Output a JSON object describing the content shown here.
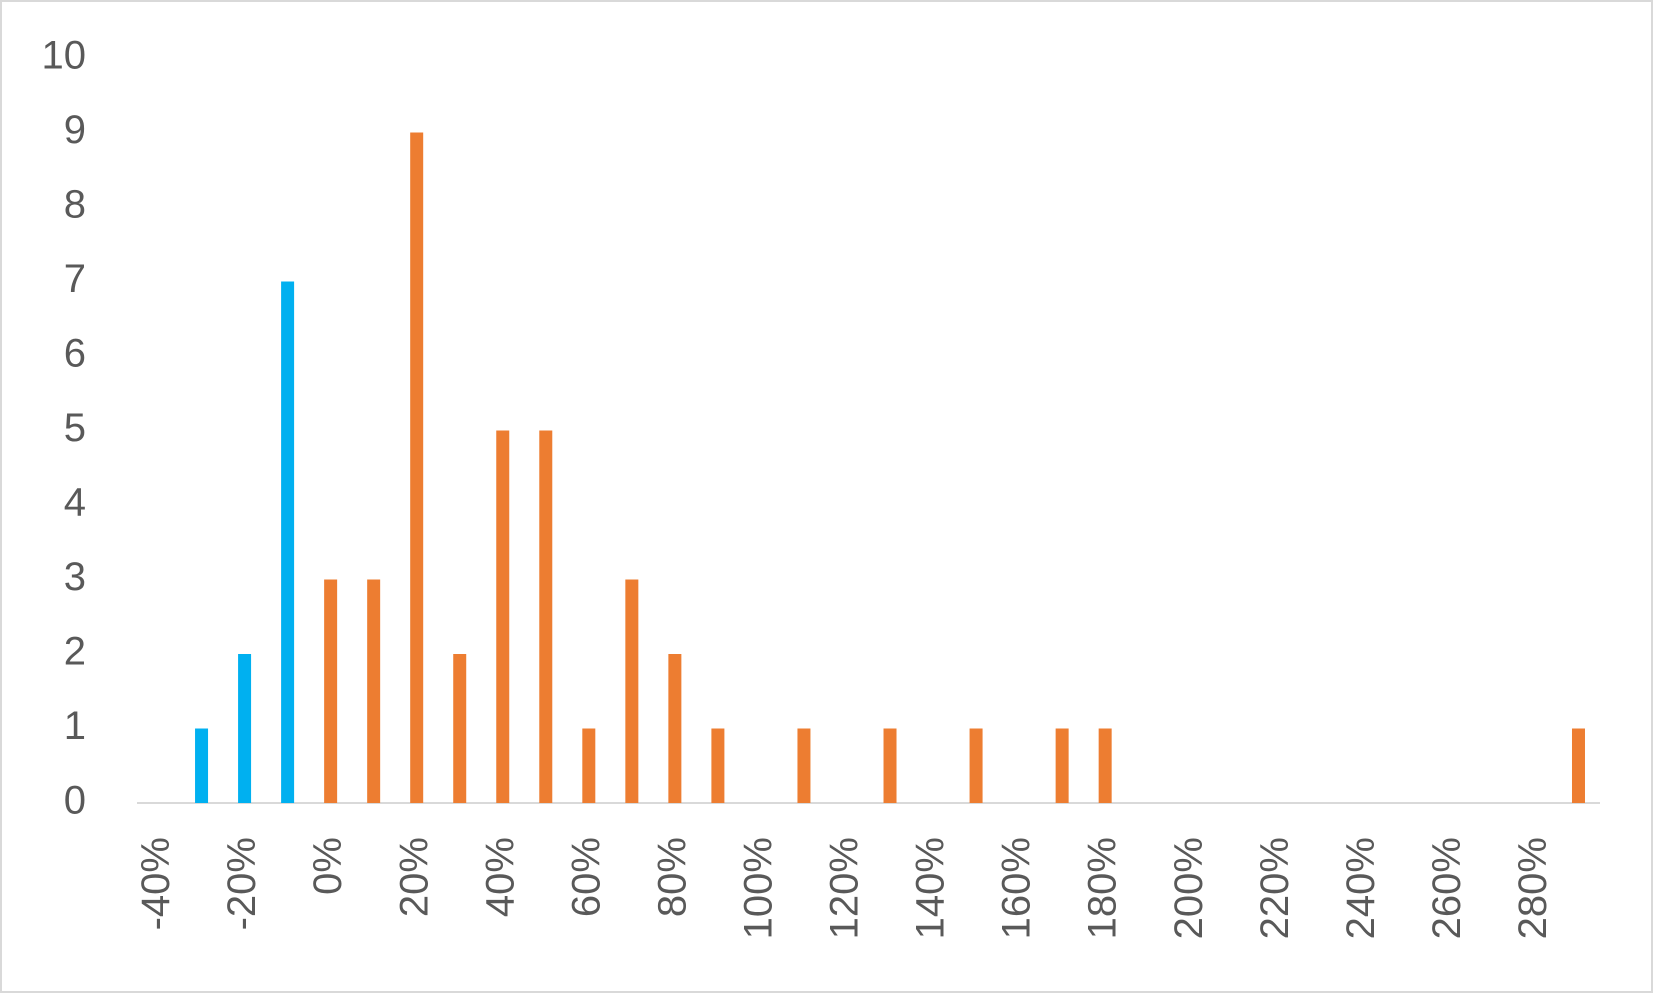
{
  "chart_data": {
    "type": "bar",
    "categories": [
      "-40%",
      null,
      "-20%",
      null,
      "0%",
      null,
      "20%",
      null,
      "40%",
      null,
      "60%",
      null,
      "80%",
      null,
      "100%",
      null,
      "120%",
      null,
      "140%",
      null,
      "160%",
      null,
      "180%",
      null,
      "200%",
      null,
      "220%",
      null,
      "240%",
      null,
      "260%",
      null,
      "280%",
      null
    ],
    "series": [
      {
        "color": "#00b0f0",
        "values": [
          0,
          1,
          2,
          7,
          null,
          null,
          null,
          null,
          null,
          null,
          null,
          null,
          null,
          null,
          null,
          null,
          null,
          null,
          null,
          null,
          null,
          null,
          null,
          null,
          null,
          null,
          null,
          null,
          null,
          null,
          null,
          null,
          null,
          null
        ]
      },
      {
        "color": "#ed7d31",
        "values": [
          null,
          null,
          null,
          null,
          3,
          3,
          9,
          2,
          5,
          5,
          1,
          3,
          2,
          1,
          0,
          1,
          0,
          1,
          0,
          1,
          0,
          1,
          1,
          0,
          0,
          0,
          0,
          0,
          0,
          0,
          0,
          0,
          0,
          1
        ]
      }
    ],
    "ylim": [
      0,
      10
    ],
    "yticks": [
      0,
      1,
      2,
      3,
      4,
      5,
      6,
      7,
      8,
      9,
      10
    ],
    "grid": false
  }
}
